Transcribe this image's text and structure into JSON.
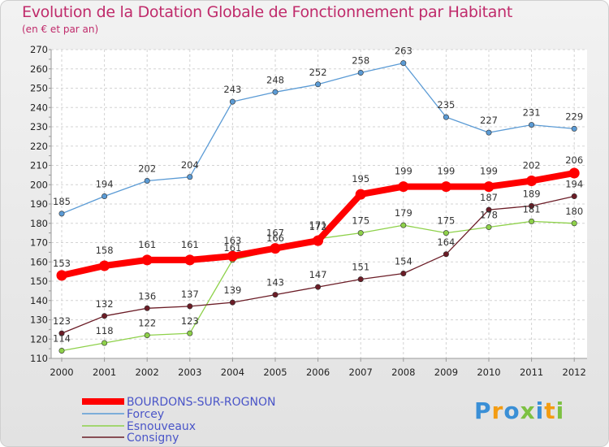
{
  "chart_data": {
    "type": "line",
    "title": "Evolution de la Dotation Globale de Fonctionnement par Habitant",
    "subtitle": "(en € et par an)",
    "x": [
      "2000",
      "2001",
      "2002",
      "2003",
      "2004",
      "2005",
      "2006",
      "2007",
      "2008",
      "2009",
      "2010",
      "2011",
      "2012"
    ],
    "ylim": [
      110,
      270
    ],
    "yticks": [
      110,
      120,
      130,
      140,
      150,
      160,
      170,
      180,
      190,
      200,
      210,
      220,
      230,
      240,
      250,
      260,
      270
    ],
    "grid": true,
    "legend_position": "bottom-left",
    "series": [
      {
        "name": "Forcey",
        "color": "#5b9bd5",
        "values": [
          185,
          194,
          202,
          204,
          243,
          248,
          252,
          258,
          263,
          235,
          227,
          231,
          229
        ]
      },
      {
        "name": "Esnouveaux",
        "color": "#8ed14a",
        "values": [
          114,
          118,
          122,
          123,
          161,
          166,
          172,
          175,
          179,
          175,
          178,
          181,
          180
        ]
      },
      {
        "name": "Consigny",
        "color": "#6b1c26",
        "values": [
          123,
          132,
          136,
          137,
          139,
          143,
          147,
          151,
          154,
          164,
          187,
          189,
          194
        ]
      },
      {
        "name": "BOURDONS-SUR-ROGNON",
        "color": "#ff0000",
        "values": [
          153,
          158,
          161,
          161,
          163,
          167,
          171,
          195,
          199,
          199,
          199,
          202,
          206
        ]
      }
    ],
    "legend": [
      "BOURDONS-SUR-ROGNON",
      "Forcey",
      "Esnouveaux",
      "Consigny"
    ]
  },
  "logo": {
    "text": "Proxiti",
    "letters": [
      "P",
      "r",
      "o",
      "x",
      "i",
      "t",
      "i"
    ],
    "colors": [
      "#3a8fd6",
      "#f39c12",
      "#3a8fd6",
      "#7dc142",
      "#3a8fd6",
      "#f39c12",
      "#7dc142"
    ]
  }
}
